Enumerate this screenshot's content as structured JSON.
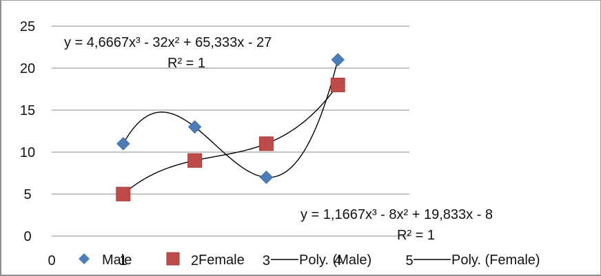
{
  "chart_data": {
    "type": "scatter",
    "x_ticks": [
      "0",
      "1",
      "2",
      "3",
      "4",
      "5"
    ],
    "y_ticks": [
      "0",
      "5",
      "10",
      "15",
      "20",
      "25"
    ],
    "xlim": [
      0,
      5
    ],
    "ylim": [
      0,
      25
    ],
    "grid": true,
    "legend_position": "bottom",
    "series": [
      {
        "name": "Male",
        "marker": "diamond",
        "color": "#4a7ebb",
        "x": [
          1,
          2,
          3,
          4
        ],
        "y": [
          11,
          13,
          7,
          21
        ]
      },
      {
        "name": "Female",
        "marker": "square",
        "color": "#be4b48",
        "x": [
          1,
          2,
          3,
          4
        ],
        "y": [
          5,
          9,
          11,
          18
        ]
      }
    ],
    "trendlines": [
      {
        "name": "Poly. (Male)",
        "of": "Male",
        "coeffs": [
          4.6667,
          -32,
          65.333,
          -27
        ]
      },
      {
        "name": "Poly. (Female)",
        "of": "Female",
        "coeffs": [
          1.1667,
          -8,
          19.833,
          -8
        ]
      }
    ],
    "annotations": {
      "male_eq": "y = 4,6667x³ - 32x² + 65,333x - 27",
      "male_r2": "R² = 1",
      "female_eq": "y = 1,1667x³ - 8x² + 19,833x - 8",
      "female_r2": "R² = 1"
    }
  }
}
